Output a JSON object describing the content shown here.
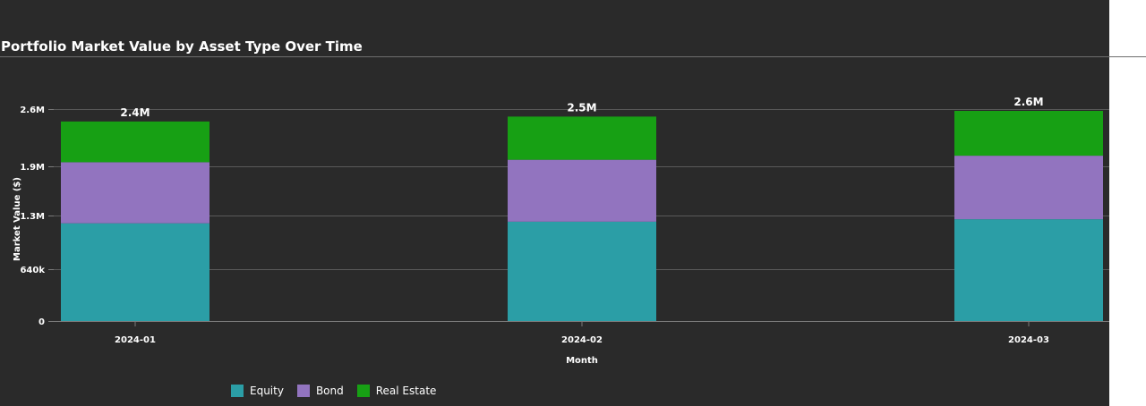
{
  "chart_data": {
    "type": "bar",
    "stacked": true,
    "title": "Portfolio Market Value by Asset Type Over Time",
    "xlabel": "Month",
    "ylabel": "Market Value ($)",
    "categories": [
      "2024-01",
      "2024-02",
      "2024-03"
    ],
    "series": [
      {
        "name": "Equity",
        "color": "#2b9ea6",
        "values": [
          1200000,
          1220000,
          1250000
        ]
      },
      {
        "name": "Bond",
        "color": "#9274bf",
        "values": [
          750000,
          760000,
          780000
        ]
      },
      {
        "name": "Real Estate",
        "color": "#17a014",
        "values": [
          500000,
          530000,
          550000
        ]
      }
    ],
    "totals_labels": [
      "2.4M",
      "2.5M",
      "2.6M"
    ],
    "yticks": [
      0,
      640000,
      1300000,
      1900000,
      2600000
    ],
    "ytick_labels": [
      "0",
      "640k",
      "1.3M",
      "1.9M",
      "2.6M"
    ],
    "ylim": [
      0,
      2580000
    ],
    "grid": true,
    "legend_position": "bottom-left"
  }
}
